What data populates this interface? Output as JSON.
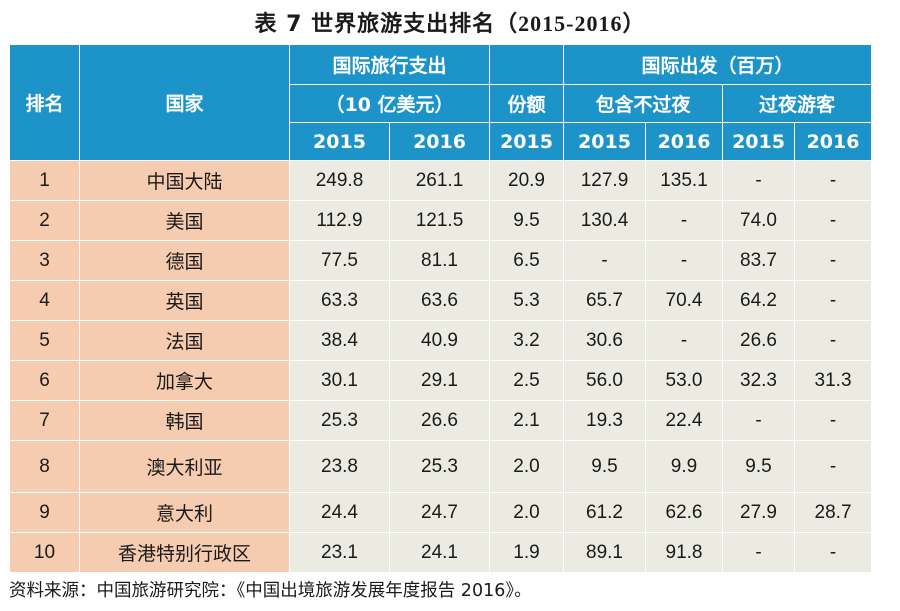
{
  "title": {
    "prefix": "表 7  世界旅游支出排名",
    "years": "（2015-2016）"
  },
  "headers": {
    "rank": "排名",
    "country": "国家",
    "spending": "国际旅行支出",
    "spending_unit": "（10 亿美元）",
    "share": "份额",
    "departures": "国际出发（百万）",
    "incl_overnight": "包含不过夜",
    "overnight": "过夜游客",
    "y2015": "2015",
    "y2016": "2016"
  },
  "rows": [
    {
      "rank": "1",
      "country": "中国大陆",
      "s2015": "249.8",
      "s2016": "261.1",
      "share": "20.9",
      "i2015": "127.9",
      "i2016": "135.1",
      "o2015": "-",
      "o2016": "-"
    },
    {
      "rank": "2",
      "country": "美国",
      "s2015": "112.9",
      "s2016": "121.5",
      "share": "9.5",
      "i2015": "130.4",
      "i2016": "-",
      "o2015": "74.0",
      "o2016": "-"
    },
    {
      "rank": "3",
      "country": "德国",
      "s2015": "77.5",
      "s2016": "81.1",
      "share": "6.5",
      "i2015": "-",
      "i2016": "-",
      "o2015": "83.7",
      "o2016": "-"
    },
    {
      "rank": "4",
      "country": "英国",
      "s2015": "63.3",
      "s2016": "63.6",
      "share": "5.3",
      "i2015": "65.7",
      "i2016": "70.4",
      "o2015": "64.2",
      "o2016": "-"
    },
    {
      "rank": "5",
      "country": "法国",
      "s2015": "38.4",
      "s2016": "40.9",
      "share": "3.2",
      "i2015": "30.6",
      "i2016": "-",
      "o2015": "26.6",
      "o2016": "-"
    },
    {
      "rank": "6",
      "country": "加拿大",
      "s2015": "30.1",
      "s2016": "29.1",
      "share": "2.5",
      "i2015": "56.0",
      "i2016": "53.0",
      "o2015": "32.3",
      "o2016": "31.3"
    },
    {
      "rank": "7",
      "country": "韩国",
      "s2015": "25.3",
      "s2016": "26.6",
      "share": "2.1",
      "i2015": "19.3",
      "i2016": "22.4",
      "o2015": "-",
      "o2016": "-"
    },
    {
      "rank": "8",
      "country": "澳大利亚",
      "s2015": "23.8",
      "s2016": "25.3",
      "share": "2.0",
      "i2015": "9.5",
      "i2016": "9.9",
      "o2015": "9.5",
      "o2016": "-"
    },
    {
      "rank": "9",
      "country": "意大利",
      "s2015": "24.4",
      "s2016": "24.7",
      "share": "2.0",
      "i2015": "61.2",
      "i2016": "62.6",
      "o2015": "27.9",
      "o2016": "28.7"
    },
    {
      "rank": "10",
      "country": "香港特别行政区",
      "s2015": "23.1",
      "s2016": "24.1",
      "share": "1.9",
      "i2015": "89.1",
      "i2016": "91.8",
      "o2015": "-",
      "o2016": "-"
    }
  ],
  "source": "资料来源：中国旅游研究院：《中国出境旅游发展年度报告 2016》。",
  "colors": {
    "header_bg": "#1d94c9",
    "rank_bg": "#f6ccb0",
    "body_bg": "#ecebe2"
  }
}
